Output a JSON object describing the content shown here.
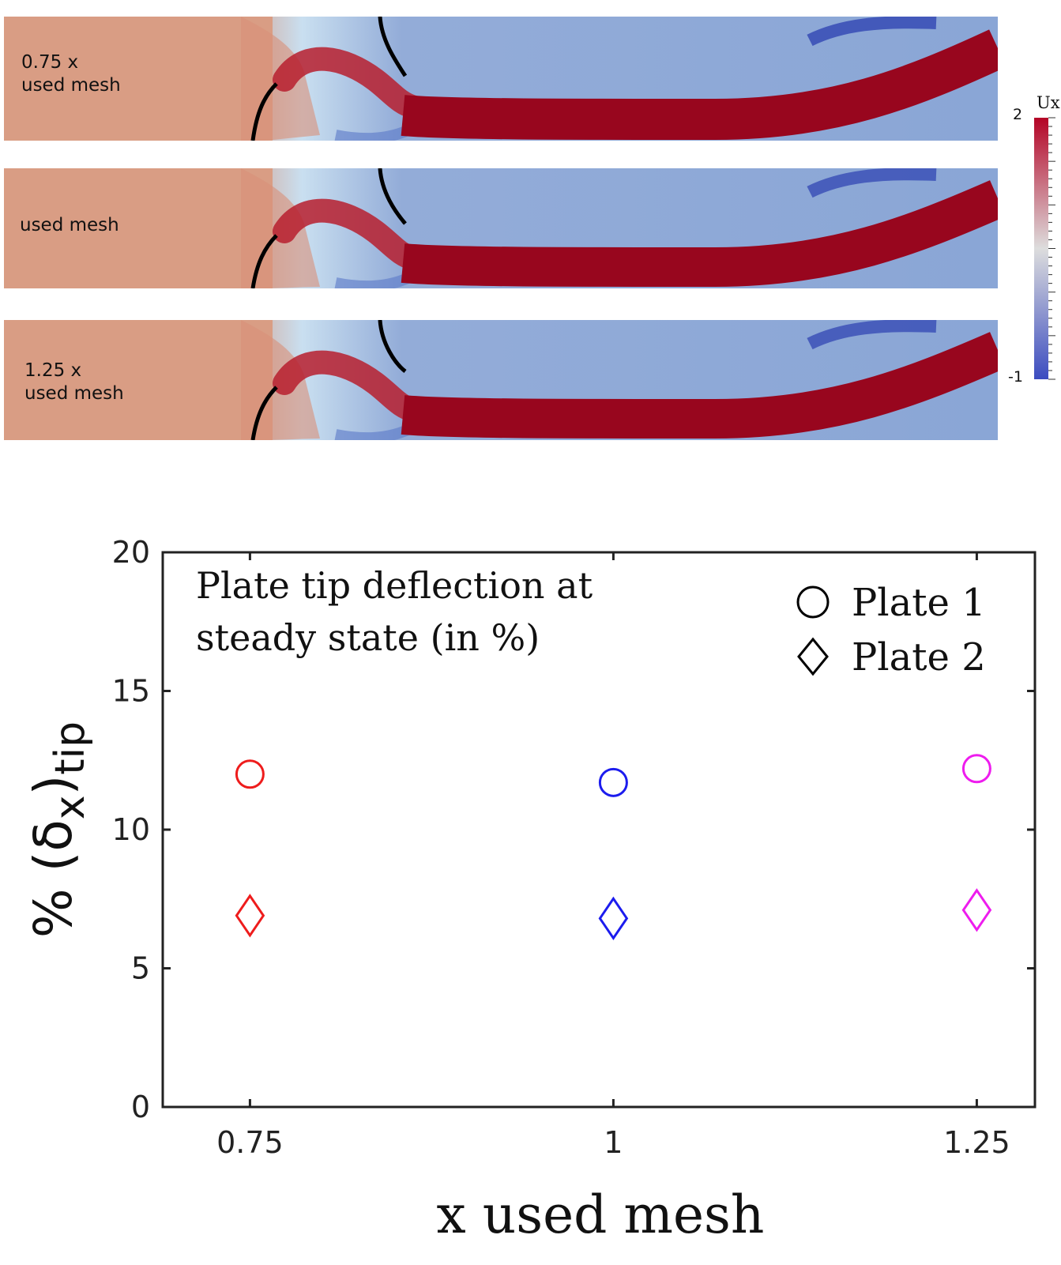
{
  "flow_panels": [
    {
      "label": "0.75 x\nused mesh"
    },
    {
      "label": "used mesh"
    },
    {
      "label": "1.25 x\nused mesh"
    }
  ],
  "colorbar": {
    "title": "Ux",
    "max_label": "2",
    "min_label": "-1",
    "colors": [
      "#3b4cc0",
      "#dddddd",
      "#b40426"
    ]
  },
  "chart_data": {
    "type": "scatter",
    "annotation": [
      "Plate tip deflection at",
      "steady state (in %)"
    ],
    "xlabel": "x used mesh",
    "ylabel": "% (δ",
    "ylabel_sub1": "x",
    "ylabel_sub2": "tip",
    "xticks": [
      0.75,
      1,
      1.25
    ],
    "xtick_labels": [
      "0.75",
      "1",
      "1.25"
    ],
    "yticks": [
      0,
      5,
      10,
      15,
      20
    ],
    "ytick_labels": [
      "0",
      "5",
      "10",
      "15",
      "20"
    ],
    "xlim": [
      0.69,
      1.29
    ],
    "ylim": [
      0,
      20
    ],
    "legend_position": "top-right",
    "series": [
      {
        "name": "Plate 1",
        "marker": "circle",
        "x": [
          0.75,
          1,
          1.25
        ],
        "y": [
          12.0,
          11.7,
          12.2
        ],
        "colors": [
          "#ee1c1c",
          "#1c1cee",
          "#ee1cee"
        ]
      },
      {
        "name": "Plate 2",
        "marker": "diamond",
        "x": [
          0.75,
          1,
          1.25
        ],
        "y": [
          6.9,
          6.8,
          7.1
        ],
        "colors": [
          "#ee1c1c",
          "#1c1cee",
          "#ee1cee"
        ]
      }
    ]
  }
}
